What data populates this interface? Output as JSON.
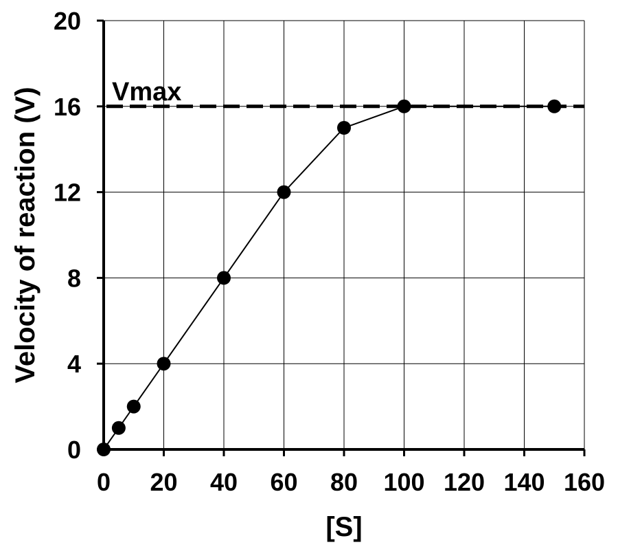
{
  "chart_data": {
    "type": "line",
    "title": "",
    "xlabel": "[S]",
    "ylabel": "Velocity of reaction (V)",
    "xlim": [
      0,
      160
    ],
    "ylim": [
      0,
      20
    ],
    "xticks": [
      0,
      20,
      40,
      60,
      80,
      100,
      120,
      140,
      160
    ],
    "yticks": [
      0,
      4,
      8,
      12,
      16,
      20
    ],
    "xtick_labels": [
      "0",
      "20",
      "40",
      "60",
      "80",
      "100",
      "120",
      "140",
      "160"
    ],
    "ytick_labels": [
      "0",
      "4",
      "8",
      "12",
      "16",
      "20"
    ],
    "grid": true,
    "series": [
      {
        "x": [
          0,
          5,
          10,
          20,
          40,
          60,
          80,
          100,
          150
        ],
        "y": [
          0,
          1,
          2,
          4,
          8,
          12,
          15,
          16,
          16
        ],
        "color": "#000000",
        "marker": "circle"
      }
    ],
    "reference_line": {
      "label": "Vmax",
      "y": 16,
      "style": "dashed"
    },
    "colors": {
      "line": "#000000",
      "grid": "#000000",
      "background": "#ffffff"
    }
  }
}
